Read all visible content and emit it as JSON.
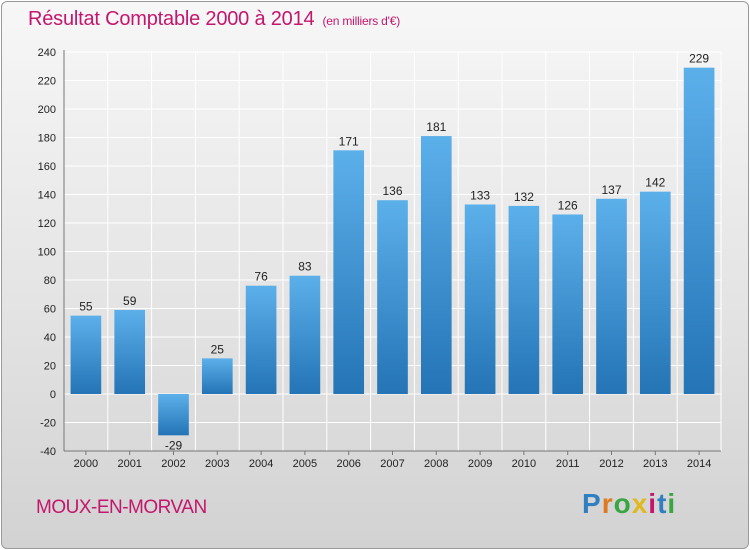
{
  "chart_data": {
    "type": "bar",
    "title": "Résultat Comptable 2000 à 2014",
    "unit_label": "(en milliers d'€)",
    "categories": [
      "2000",
      "2001",
      "2002",
      "2003",
      "2004",
      "2005",
      "2006",
      "2007",
      "2008",
      "2009",
      "2010",
      "2011",
      "2012",
      "2013",
      "2014"
    ],
    "values": [
      55,
      59,
      -29,
      25,
      76,
      83,
      171,
      136,
      181,
      133,
      132,
      126,
      137,
      142,
      229
    ],
    "ylim": [
      -40,
      240
    ],
    "yticks": [
      -40,
      -20,
      0,
      20,
      40,
      60,
      80,
      100,
      120,
      140,
      160,
      180,
      200,
      220,
      240
    ],
    "grid": true,
    "xlabel": "",
    "ylabel": "",
    "bar_color": "#3a8fd0"
  },
  "footer": {
    "city": "MOUX-EN-MORVAN",
    "brand": "Proxiti",
    "brand_letters": [
      {
        "ch": "P",
        "color": "#2f7fc1"
      },
      {
        "ch": "r",
        "color": "#e07a1f"
      },
      {
        "ch": "o",
        "color": "#3aa641"
      },
      {
        "ch": "x",
        "color": "#e0b81f"
      },
      {
        "ch": "i",
        "color": "#c4166d"
      },
      {
        "ch": "t",
        "color": "#2f7fc1"
      },
      {
        "ch": "i",
        "color": "#3aa641"
      }
    ]
  },
  "colors": {
    "accent": "#c4166d",
    "bar": "#3a8fd0"
  }
}
